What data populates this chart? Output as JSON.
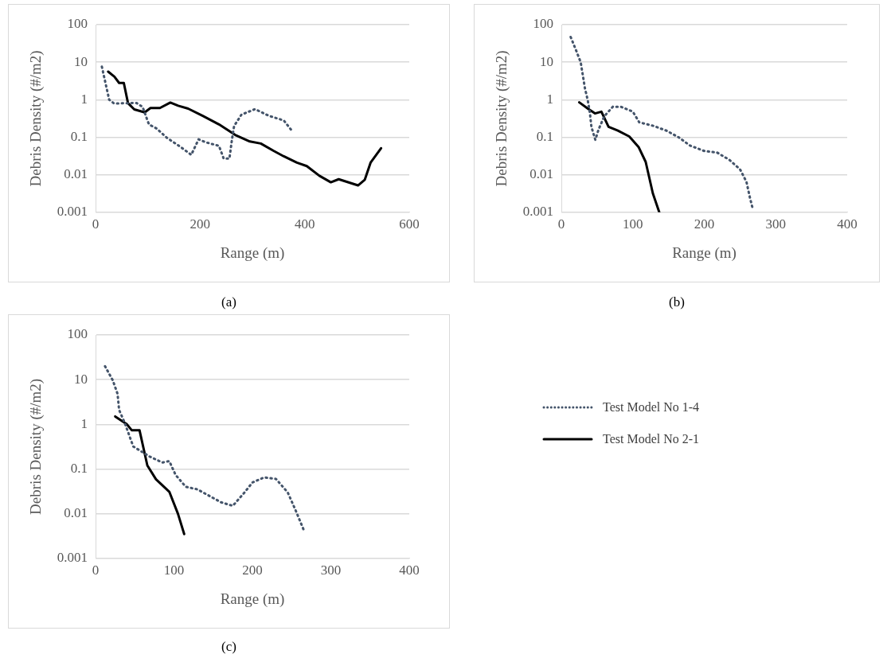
{
  "chart_data": [
    {
      "type": "line",
      "xlabel": "Range (m)",
      "ylabel": "Debris Density (#/m2)",
      "annotations": [
        "(a)"
      ],
      "log": "y",
      "grid": "y",
      "marker": "none",
      "legend": false,
      "xlim": [
        0,
        600
      ],
      "xticks": [
        0,
        200,
        400,
        600
      ],
      "ylim": [
        0.001,
        100
      ],
      "yticks": [
        0.001,
        0.01,
        0.1,
        1,
        10,
        100
      ],
      "series": [
        {
          "color": "#44546a",
          "line_style": "dotted",
          "x": [
            12,
            26,
            35,
            48,
            78,
            90,
            102,
            117,
            137,
            161,
            183,
            197,
            211,
            236,
            245,
            256,
            261,
            265,
            279,
            305,
            332,
            360,
            377
          ],
          "values": [
            7.6,
            1.0,
            0.8,
            0.8,
            0.82,
            0.64,
            0.22,
            0.17,
            0.095,
            0.057,
            0.034,
            0.088,
            0.073,
            0.059,
            0.027,
            0.027,
            0.09,
            0.2,
            0.4,
            0.56,
            0.37,
            0.28,
            0.14
          ]
        },
        {
          "color": "#000000",
          "line_style": "solid",
          "x": [
            24,
            36,
            45,
            54,
            62,
            74,
            94,
            105,
            123,
            143,
            158,
            177,
            205,
            236,
            267,
            295,
            316,
            341,
            360,
            385,
            404,
            428,
            450,
            465,
            502,
            515,
            526,
            546
          ],
          "values": [
            5.6,
            4.1,
            2.8,
            2.8,
            0.81,
            0.55,
            0.46,
            0.6,
            0.6,
            0.84,
            0.69,
            0.58,
            0.37,
            0.22,
            0.115,
            0.077,
            0.068,
            0.043,
            0.031,
            0.021,
            0.017,
            0.0094,
            0.0063,
            0.0076,
            0.0052,
            0.0074,
            0.021,
            0.051
          ]
        }
      ]
    },
    {
      "type": "line",
      "xlabel": "Range (m)",
      "ylabel": "Debris Density (#/m2)",
      "annotations": [
        "(b)"
      ],
      "log": "y",
      "grid": "y",
      "marker": "none",
      "legend": false,
      "xlim": [
        0,
        400
      ],
      "xticks": [
        0,
        100,
        200,
        300,
        400
      ],
      "ylim": [
        0.001,
        100
      ],
      "yticks": [
        0.001,
        0.01,
        0.1,
        1,
        10,
        100
      ],
      "series": [
        {
          "color": "#44546a",
          "line_style": "dotted",
          "x": [
            13,
            20,
            27,
            30,
            33,
            37,
            40,
            42,
            47.5,
            52,
            60,
            72,
            83,
            100,
            109,
            129,
            147,
            164,
            180,
            200,
            218,
            235,
            250,
            259,
            264,
            267.5
          ],
          "values": [
            47,
            22,
            10,
            4.5,
            2.0,
            0.95,
            0.43,
            0.19,
            0.085,
            0.16,
            0.36,
            0.65,
            0.65,
            0.48,
            0.25,
            0.2,
            0.15,
            0.1,
            0.06,
            0.043,
            0.039,
            0.025,
            0.014,
            0.0065,
            0.0024,
            0.0013
          ]
        },
        {
          "color": "#000000",
          "line_style": "solid",
          "x": [
            25,
            37,
            47,
            56,
            66,
            79,
            95,
            108,
            118,
            128,
            137
          ],
          "values": [
            0.85,
            0.58,
            0.43,
            0.48,
            0.19,
            0.15,
            0.105,
            0.055,
            0.022,
            0.0032,
            0.001
          ]
        }
      ]
    },
    {
      "type": "line",
      "xlabel": "Range (m)",
      "ylabel": "Debris Density (#/m2)",
      "annotations": [
        "(c)"
      ],
      "log": "y",
      "grid": "y",
      "marker": "none",
      "legend": "right",
      "xlim": [
        0,
        400
      ],
      "xticks": [
        0,
        100,
        200,
        300,
        400
      ],
      "ylim": [
        0.001,
        100
      ],
      "yticks": [
        0.001,
        0.01,
        0.1,
        1,
        10,
        100
      ],
      "series": [
        {
          "name": "Test Model No 1-4",
          "color": "#44546a",
          "line_style": "dotted",
          "x": [
            12,
            22,
            28,
            30,
            37,
            44,
            48,
            69,
            85,
            94,
            102,
            115,
            130,
            160,
            175,
            190,
            200,
            215,
            230,
            245,
            255,
            265
          ],
          "values": [
            20,
            9.6,
            4.8,
            2.1,
            1.1,
            0.5,
            0.32,
            0.19,
            0.14,
            0.15,
            0.074,
            0.04,
            0.035,
            0.018,
            0.015,
            0.03,
            0.05,
            0.065,
            0.06,
            0.03,
            0.012,
            0.0045
          ]
        },
        {
          "name": "Test Model No 2-1",
          "color": "#000000",
          "line_style": "solid",
          "x": [
            25,
            40,
            46,
            56,
            66,
            77,
            94,
            105,
            113
          ],
          "values": [
            1.5,
            1.0,
            0.74,
            0.74,
            0.12,
            0.059,
            0.031,
            0.01,
            0.0035
          ]
        }
      ]
    }
  ]
}
